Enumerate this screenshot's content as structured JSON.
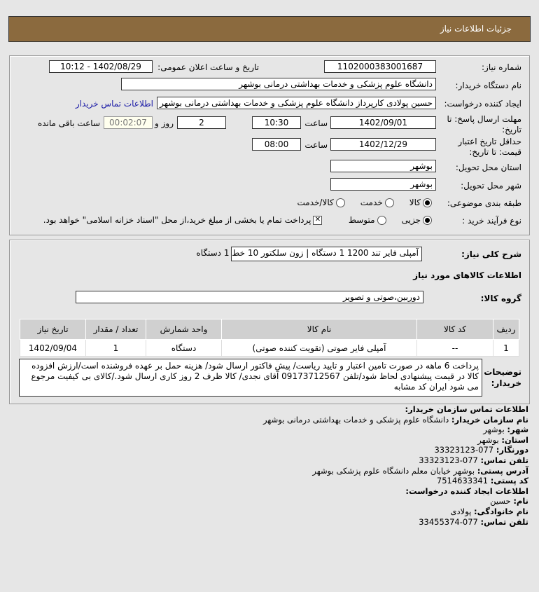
{
  "header": {
    "title": "جزئیات اطلاعات نیاز"
  },
  "form": {
    "need_number_label": "شماره نیاز:",
    "need_number": "1102000383001687",
    "announce_label": "تاریخ و ساعت اعلان عمومی:",
    "announce_value": "1402/08/29 - 10:12",
    "buyer_label": "نام دستگاه خریدار:",
    "buyer_value": "دانشگاه علوم پزشکی و خدمات بهداشتی درمانی بوشهر",
    "creator_label": "ایجاد کننده درخواست:",
    "creator_value": "حسین پولادی کارپرداز دانشگاه علوم پزشکی و خدمات بهداشتی درمانی بوشهر",
    "contact_link": "اطلاعات تماس خریدار",
    "deadline_label": "مهلت ارسال پاسخ: تا تاریخ:",
    "deadline_date": "1402/09/01",
    "time_label": "ساعت",
    "deadline_time": "10:30",
    "days": "2",
    "days_label": "روز و",
    "remaining": "00:02:07",
    "remaining_label": "ساعت باقی مانده",
    "validity_label": "حداقل تاریخ اعتبار قیمت: تا تاریخ:",
    "validity_date": "1402/12/29",
    "validity_time": "08:00",
    "province_label": "استان محل تحویل:",
    "province": "بوشهر",
    "city_label": "شهر محل تحویل:",
    "city": "بوشهر",
    "category_label": "طبقه بندی موضوعی:",
    "category_options": [
      "کالا",
      "خدمت",
      "کالا/خدمت"
    ],
    "category_selected": "کالا",
    "process_label": "نوع فرآیند خرید :",
    "process_options": [
      "جزیی",
      "متوسط"
    ],
    "process_selected": "جزیی",
    "payment_note": "پرداخت تمام یا بخشی از مبلغ خرید،از محل \"اسناد خزانه اسلامی\" خواهد بود.",
    "payment_checked": true
  },
  "details": {
    "summary_label": "شرح کلی نیاز:",
    "summary": "آمپلی فایر تند 1200 1 دستگاه | زون سلکتور 10 خط 1 دستگاه",
    "goods_title": "اطلاعات کالاهای مورد نیاز",
    "group_label": "گروه کالا:",
    "group": "دوربین،صوتی و تصویر",
    "table": {
      "headers": [
        "ردیف",
        "کد کالا",
        "نام کالا",
        "واحد شمارش",
        "تعداد / مقدار",
        "تاریخ نیاز"
      ],
      "rows": [
        [
          "1",
          "--",
          "آمپلی فایر صوتی (تقویت کننده صوتی)",
          "دستگاه",
          "1",
          "1402/09/04"
        ]
      ]
    },
    "notes_label": "توضیحات خریدار:",
    "notes": "پرداخت 6 ماهه در صورت تامین اعتبار و تایید ریاست/ پیش فاکتور ارسال شود/ هزینه حمل بر عهده فروشنده است/ارزش افزوده کالا در قیمت پیشنهادی لحاظ شود/تلفن 09173712567 آقای نجدی/ کالا ظرف 2 روز کاری ارسال شود./کالای بی کیفیت مرجوع می شود ایران کد مشابه"
  },
  "contact": {
    "title": "اطلاعات تماس سازمان خریدار:",
    "org_label": "نام سازمان خریدار:",
    "org": "دانشگاه علوم پزشکی و خدمات بهداشتی درمانی بوشهر",
    "city_label": "شهر:",
    "city": "بوشهر",
    "province_label": "استان:",
    "province": "بوشهر",
    "fax_label": "دورنگار:",
    "fax": "077-33323123",
    "phone_label": "تلفن تماس:",
    "phone": "077-33323123",
    "address_label": "آدرس پستی:",
    "address": "بوشهر خیابان معلم دانشگاه علوم پزشکی بوشهر",
    "postal_label": "کد پستی:",
    "postal": "7514633341",
    "creator_title": "اطلاعات ایجاد کننده درخواست:",
    "name_label": "نام:",
    "name": "حسین",
    "family_label": "نام خانوادگی:",
    "family": "پولادی",
    "creator_phone_label": "تلفن تماس:",
    "creator_phone": "077-33455374"
  }
}
